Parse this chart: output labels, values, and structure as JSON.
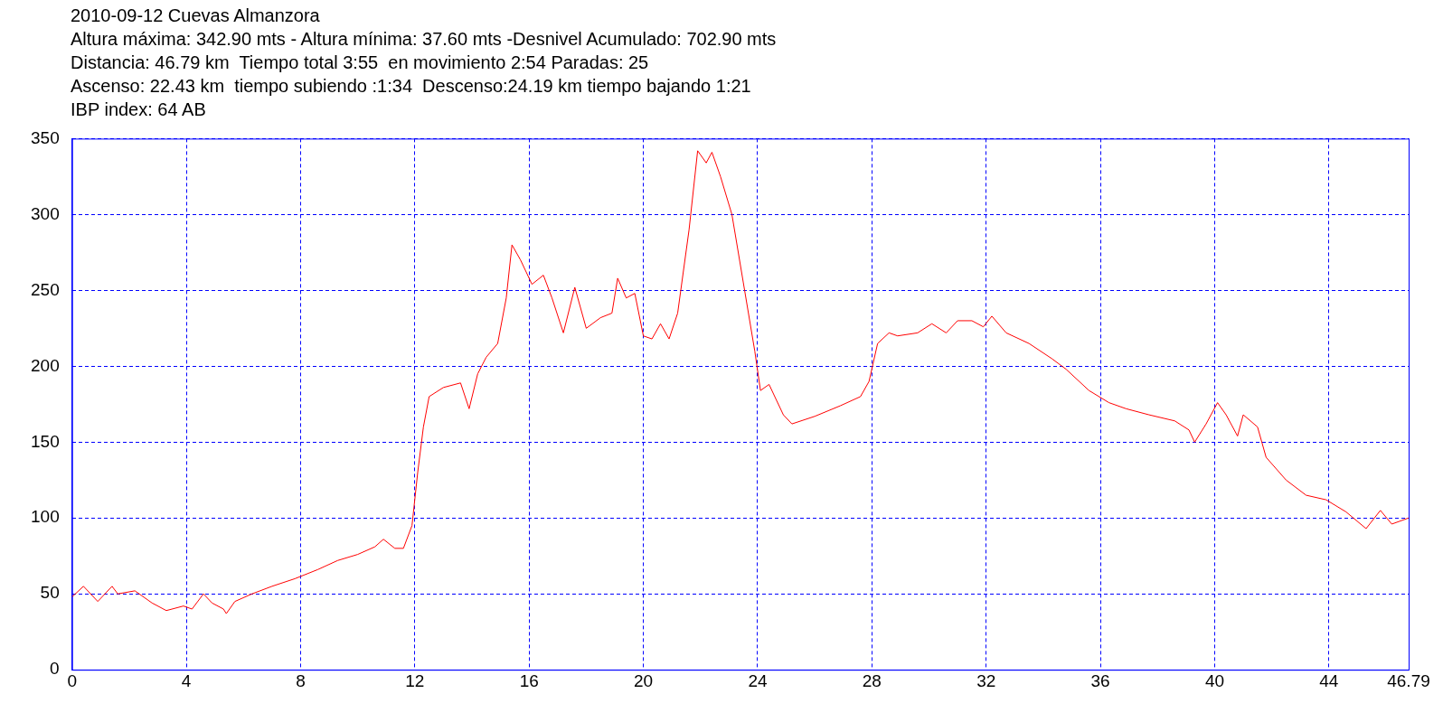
{
  "chart_data": {
    "type": "line",
    "title": "2010-09-12 Cuevas Almanzora",
    "subtitle": "Altura máxima: 342.90 mts - Altura mínima: 37.60 mts -Desnivel Acumulado: 702.90 mts",
    "annotations": [
      "Distancia: 46.79 km  Tiempo total 3:55  en movimiento 2:54 Paradas: 25",
      "Ascenso: 22.43 km  tiempo subiendo :1:34  Descenso:24.19 km tiempo bajando 1:21",
      "IBP index: 64 AB"
    ],
    "xlim": [
      0,
      46.79
    ],
    "xticks": [
      0,
      4,
      8,
      12,
      16,
      20,
      24,
      28,
      32,
      36,
      40,
      44,
      46.79
    ],
    "ylim": [
      0,
      350
    ],
    "yticks": [
      0,
      50,
      100,
      150,
      200,
      250,
      300,
      350
    ],
    "grid": true,
    "marker": "none",
    "line_style": "solid",
    "series": [
      {
        "color": "#ff0000",
        "x": [
          0,
          0.4,
          0.9,
          1.4,
          1.6,
          2.2,
          2.8,
          3.3,
          3.9,
          4.2,
          4.6,
          4.9,
          5.3,
          5.4,
          5.7,
          6.3,
          7.0,
          7.8,
          8.6,
          9.3,
          10.0,
          10.6,
          10.9,
          11.3,
          11.6,
          11.9,
          12.1,
          12.3,
          12.5,
          13.0,
          13.6,
          13.9,
          14.2,
          14.5,
          14.9,
          15.2,
          15.4,
          15.7,
          16.1,
          16.5,
          16.8,
          17.2,
          17.6,
          18.0,
          18.5,
          18.9,
          19.1,
          19.4,
          19.7,
          20.0,
          20.3,
          20.6,
          20.9,
          21.2,
          21.6,
          21.9,
          22.2,
          22.4,
          22.7,
          23.1,
          23.5,
          23.9,
          24.1,
          24.4,
          24.9,
          25.2,
          26.0,
          26.9,
          27.6,
          27.9,
          28.2,
          28.6,
          28.9,
          29.6,
          30.1,
          30.6,
          31.0,
          31.5,
          31.9,
          32.2,
          32.7,
          33.5,
          34.3,
          34.8,
          35.6,
          36.3,
          36.9,
          37.7,
          38.6,
          39.1,
          39.3,
          39.7,
          40.1,
          40.4,
          40.8,
          41.0,
          41.5,
          41.8,
          42.5,
          43.2,
          43.9,
          44.6,
          45.3,
          45.8,
          46.2,
          46.79
        ],
        "values": [
          48,
          55,
          45,
          55,
          50,
          52,
          44,
          39,
          42,
          40,
          50,
          44,
          40,
          37,
          45,
          50,
          55,
          60,
          66,
          72,
          76,
          81,
          86,
          80,
          80,
          95,
          130,
          160,
          180,
          186,
          189,
          172,
          195,
          206,
          215,
          245,
          280,
          270,
          254,
          260,
          245,
          222,
          252,
          225,
          232,
          235,
          258,
          245,
          248,
          220,
          218,
          228,
          218,
          235,
          290,
          342,
          334,
          341,
          325,
          300,
          255,
          210,
          184,
          188,
          168,
          162,
          167,
          174,
          180,
          190,
          215,
          222,
          220,
          222,
          228,
          222,
          230,
          230,
          226,
          233,
          222,
          215,
          205,
          198,
          184,
          176,
          172,
          168,
          164,
          158,
          150,
          162,
          176,
          168,
          154,
          168,
          160,
          140,
          125,
          115,
          112,
          104,
          93,
          105,
          96,
          100
        ]
      }
    ]
  }
}
